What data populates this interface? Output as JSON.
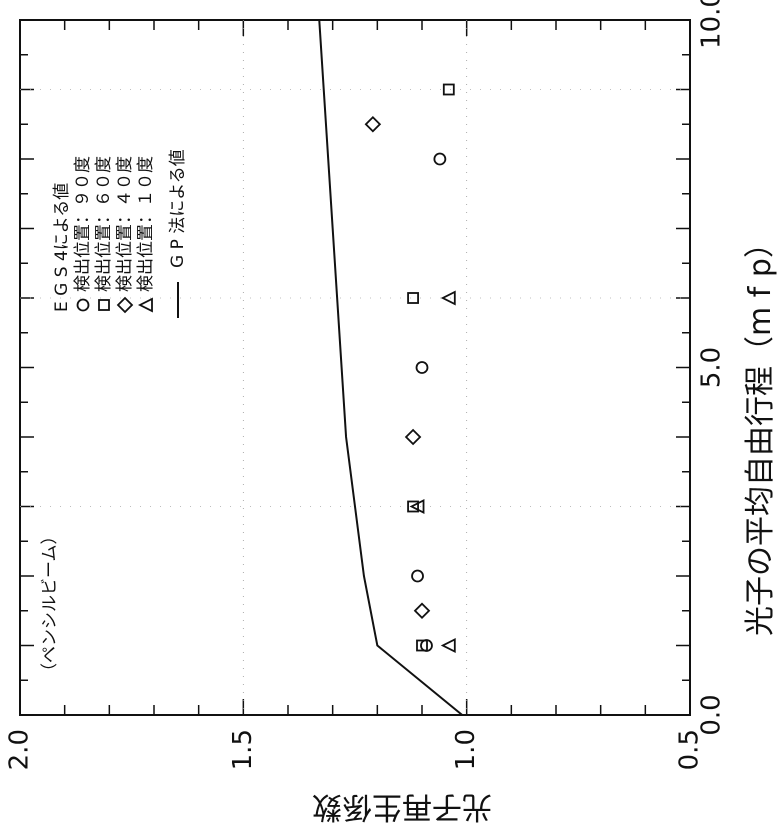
{
  "chart_data": {
    "type": "scatter",
    "title": "",
    "annotation": "（ペンシルビーム）",
    "xlabel": "光子の平均自由行程（m f p）",
    "ylabel": "光子再生係数",
    "xlim": [
      0.0,
      10.0
    ],
    "ylim": [
      0.5,
      2.0
    ],
    "x_ticks": [
      "0.0",
      "5.0",
      "10.0"
    ],
    "y_ticks": [
      "0.5",
      "1.0",
      "1.5",
      "2.0"
    ],
    "legend_title": "E G S 4による値",
    "series": [
      {
        "name": "検出位置：９０度",
        "marker": "circle",
        "x": [
          1.0,
          2.0,
          5.0,
          8.0
        ],
        "y": [
          1.09,
          1.11,
          1.1,
          1.06
        ]
      },
      {
        "name": "検出位置：６０度",
        "marker": "square",
        "x": [
          1.0,
          3.0,
          6.0,
          9.0
        ],
        "y": [
          1.1,
          1.12,
          1.12,
          1.04
        ]
      },
      {
        "name": "検出位置：４０度",
        "marker": "diamond",
        "x": [
          1.5,
          4.0,
          8.5
        ],
        "y": [
          1.1,
          1.12,
          1.21
        ]
      },
      {
        "name": "検出位置：１０度",
        "marker": "triangle",
        "x": [
          1.0,
          3.0,
          6.0
        ],
        "y": [
          1.04,
          1.11,
          1.04
        ]
      },
      {
        "name": "G P 法による値",
        "marker": "line",
        "x": [
          0.0,
          1.0,
          2.0,
          3.0,
          4.0,
          5.0,
          6.0,
          7.0,
          8.0,
          9.0,
          10.0
        ],
        "y": [
          1.01,
          1.2,
          1.23,
          1.25,
          1.27,
          1.28,
          1.29,
          1.3,
          1.31,
          1.32,
          1.33
        ]
      }
    ]
  }
}
